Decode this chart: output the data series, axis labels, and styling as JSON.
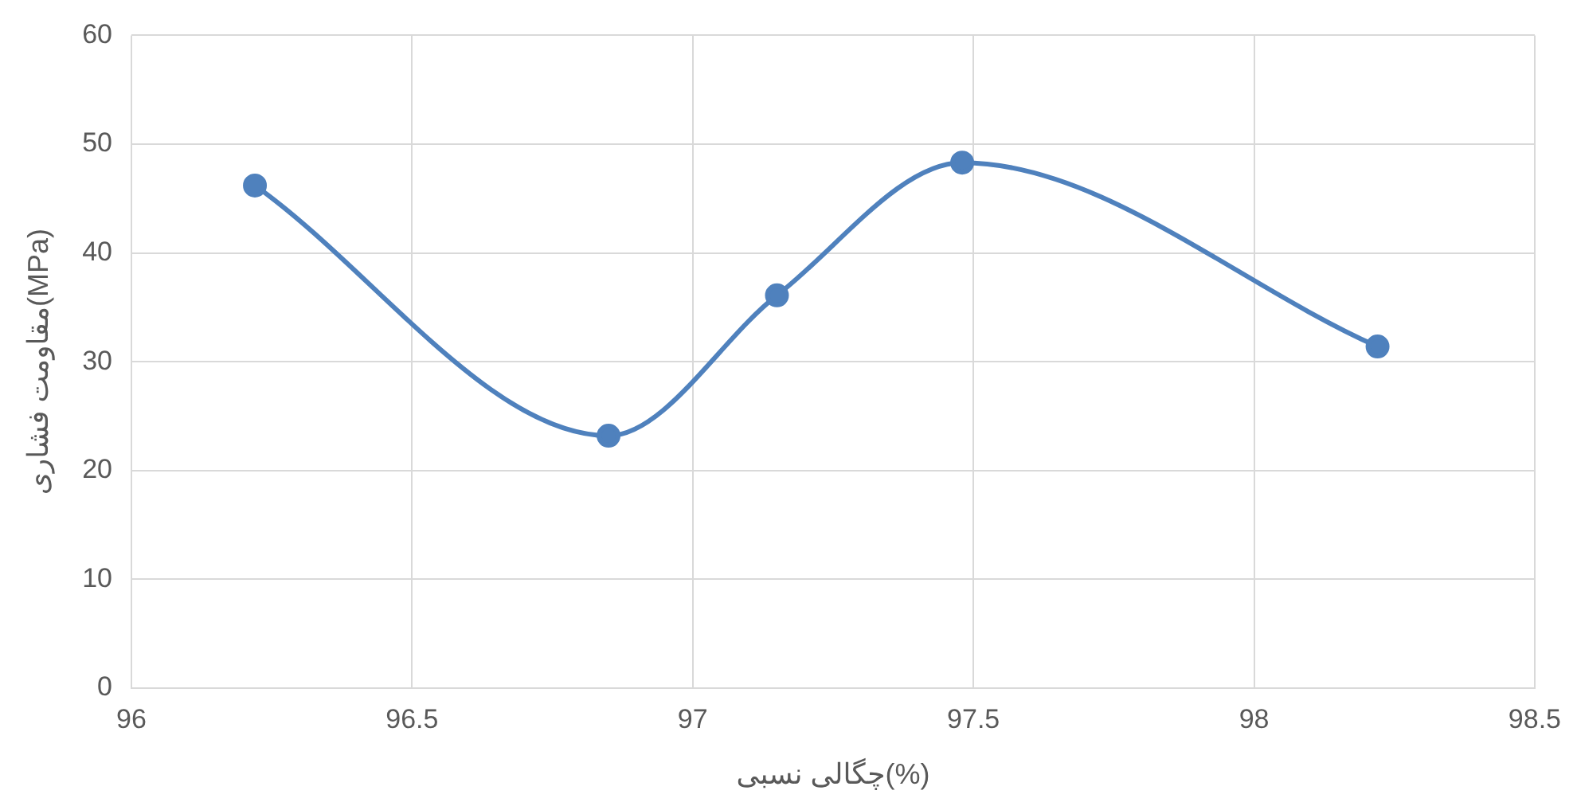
{
  "chart_data": {
    "type": "line",
    "xlabel": "چگالی نسبی(%)",
    "ylabel": "مقاومت فشاری(MPa)",
    "series": [
      {
        "color": "#4f81bd",
        "x": [
          96.22,
          96.85,
          97.15,
          97.48,
          98.22
        ],
        "values": [
          46.2,
          23.2,
          36.1,
          48.3,
          31.4
        ]
      }
    ],
    "xlim": [
      96,
      98.5
    ],
    "xticks": [
      96,
      96.5,
      97,
      97.5,
      98,
      98.5
    ],
    "ylim": [
      0,
      60
    ],
    "yticks": [
      0,
      10,
      20,
      30,
      40,
      50,
      60
    ],
    "grid": true,
    "marker": "circle",
    "line_style": "solid"
  }
}
